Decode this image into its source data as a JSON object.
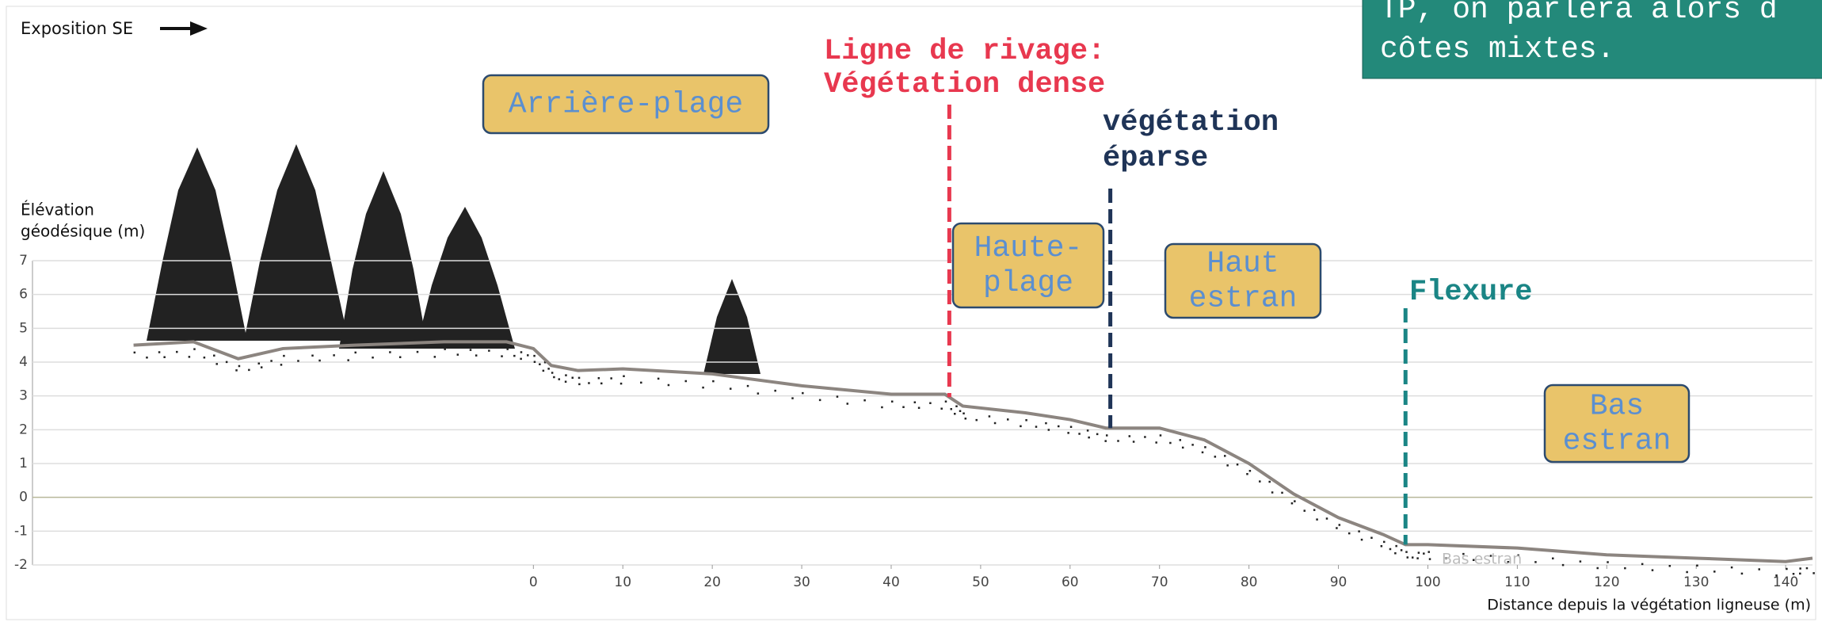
{
  "chart_data": {
    "type": "line",
    "exposition": "Exposition SE",
    "ylabel": [
      "Élévation",
      "géodésique (m)"
    ],
    "xlabel": "Distance depuis la végétation ligneuse (m)",
    "color": "#8c8580",
    "grid": true,
    "xlim": [
      -56,
      143
    ],
    "ylim": [
      -2,
      7
    ],
    "xticks": [
      0,
      10,
      20,
      30,
      40,
      50,
      60,
      70,
      80,
      90,
      100,
      110,
      120,
      130,
      140
    ],
    "yticks": [
      -2,
      -1,
      0,
      1,
      2,
      3,
      4,
      5,
      6,
      7
    ],
    "x": [
      -44.7,
      -38,
      -33,
      -28,
      -20,
      -10,
      -3,
      0,
      2,
      5,
      10,
      20,
      30,
      40,
      46,
      48,
      55,
      60,
      64,
      70,
      75,
      80,
      85,
      90,
      95,
      97.5,
      100,
      110,
      120,
      130,
      140,
      143
    ],
    "values": [
      4.5,
      4.6,
      4.1,
      4.4,
      4.5,
      4.6,
      4.6,
      4.4,
      3.9,
      3.75,
      3.8,
      3.65,
      3.3,
      3.05,
      3.05,
      2.7,
      2.5,
      2.3,
      2.05,
      2.05,
      1.7,
      1.0,
      0.1,
      -0.6,
      -1.1,
      -1.4,
      -1.4,
      -1.5,
      -1.7,
      -1.8,
      -1.9,
      -1.8
    ],
    "zones": [
      {
        "label": [
          "Arrière-plage"
        ]
      },
      {
        "label": [
          "Haute-",
          "plage"
        ]
      },
      {
        "label": [
          "Haut",
          "estran"
        ]
      },
      {
        "label": [
          "Bas",
          "estran"
        ]
      }
    ],
    "markers": [
      {
        "label": [
          "Ligne de rivage:",
          "Végétation dense"
        ],
        "x": 46.5,
        "color": "#e8384f"
      },
      {
        "label": [
          "végétation",
          "éparse"
        ],
        "x": 64.5,
        "color": "#1f3457"
      },
      {
        "label": [
          "Flexure"
        ],
        "x": 97.5,
        "color": "#1a8585"
      }
    ],
    "note": "Bas estran",
    "callout": [
      "TP, on parlera alors d",
      "côtes mixtes."
    ]
  }
}
